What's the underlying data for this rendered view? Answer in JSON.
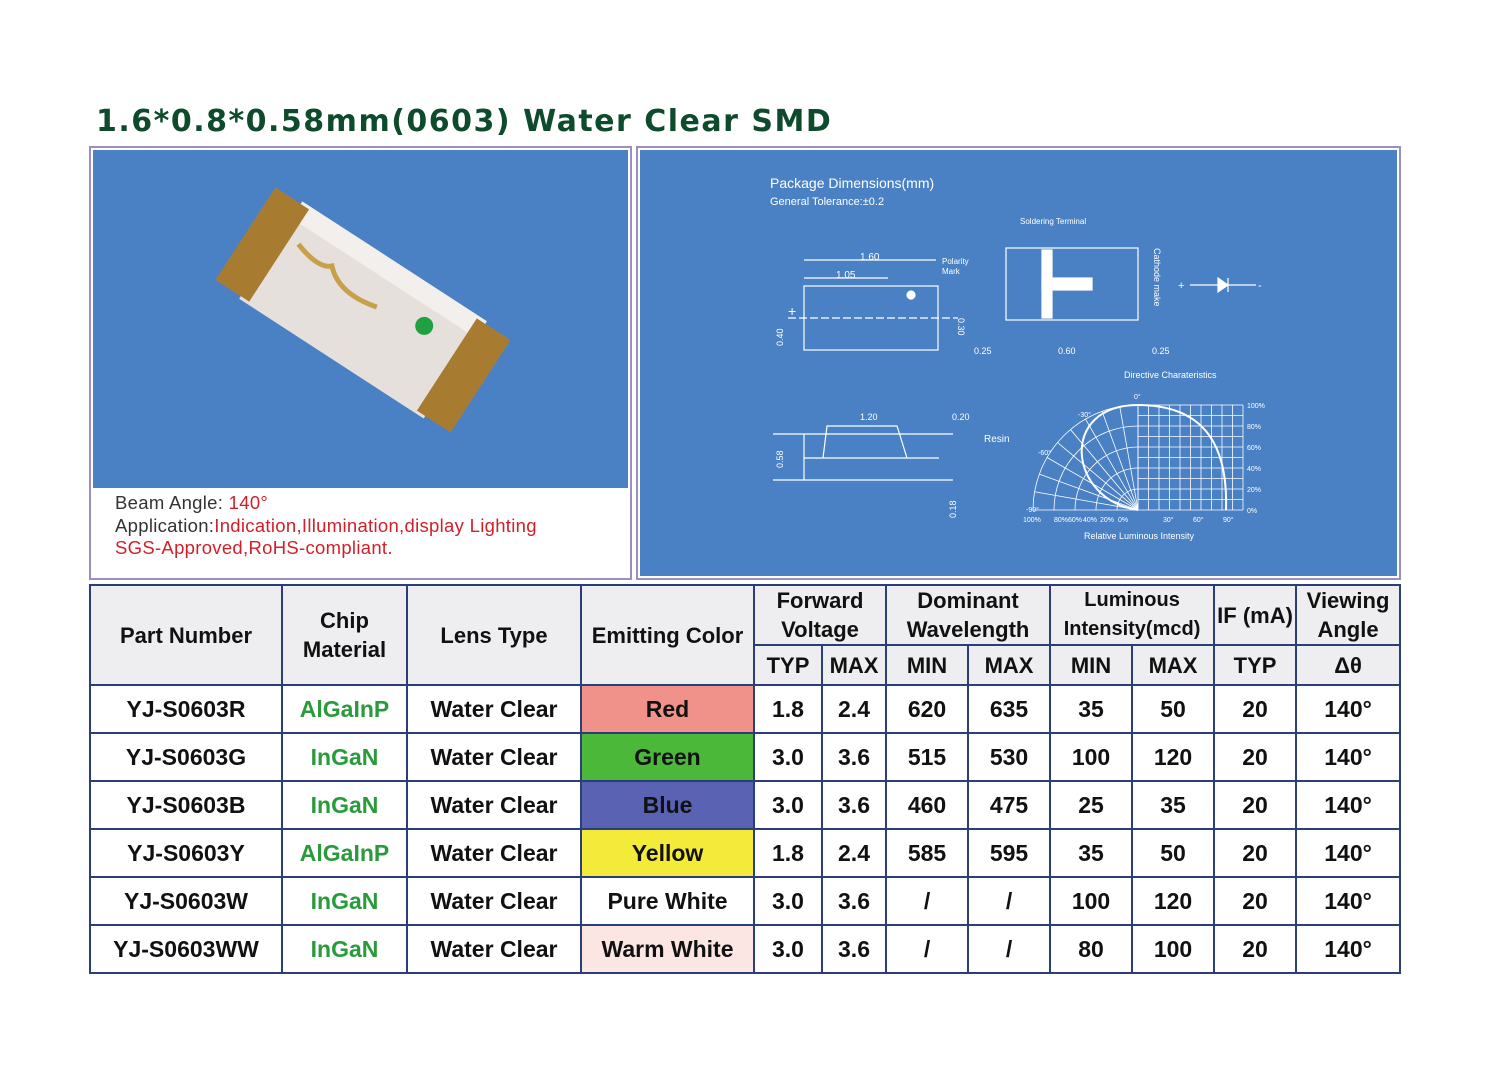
{
  "title": "1.6*0.8*0.58mm(0603)  Water Clear SMD",
  "caption": {
    "beam_label": "Beam Angle: ",
    "beam_value": "140°",
    "app_label": "Application:",
    "app_value": "Indication,Illumination,display Lighting",
    "cert": "SGS-Approved,RoHS-compliant."
  },
  "diagram": {
    "heading": "Package Dimensions(mm)",
    "tolerance": "General Tolerance:±0.2",
    "soldering": "Soldering Terminal",
    "d160": "1.60",
    "d105": "1.05",
    "polarity1": "Polarity",
    "polarity2": "Mark",
    "d040": "0.40",
    "d030": "0.30",
    "d025a": "0.25",
    "d060": "0.60",
    "d025b": "0.25",
    "cathode": "Cathode make",
    "plus": "+",
    "minus": "-",
    "directive": "Directive Charateristics",
    "d120": "1.20",
    "d020": "0.20",
    "resin": "Resin",
    "d058": "0.58",
    "d018": "0.18",
    "rel": "Relative Luminous Intensity",
    "polar_angles": [
      "0°",
      "-30°",
      "-60°",
      "-90°"
    ],
    "right_pct": [
      "100%",
      "80%",
      "60%",
      "40%",
      "20%",
      "0%"
    ],
    "bottom_ticks": [
      "100%",
      "80%",
      "60%",
      "40%",
      "20%",
      "0%",
      "30°",
      "60°",
      "90°"
    ]
  },
  "table": {
    "headers": {
      "part": "Part Number",
      "chip": "Chip Material",
      "lens": "Lens Type",
      "color": "Emitting Color",
      "fv": "Forward Voltage",
      "dw": "Dominant Wavelength",
      "li": "Luminous Intensity(mcd)",
      "if": "IF (mA)",
      "va": "Viewing Angle"
    },
    "subheaders": [
      "TYP",
      "MAX",
      "MIN",
      "MAX",
      "MIN",
      "MAX",
      "TYP",
      "Δθ"
    ],
    "rows": [
      {
        "part": "YJ-S0603R",
        "chip": "AlGaInP",
        "lens": "Water Clear",
        "color": "Red",
        "bg": "#f0918a",
        "vt": "1.8",
        "vm": "2.4",
        "wmin": "620",
        "wmax": "635",
        "imin": "35",
        "imax": "50",
        "if": "20",
        "va": "140°"
      },
      {
        "part": "YJ-S0603G",
        "chip": "InGaN",
        "lens": "Water Clear",
        "color": "Green",
        "bg": "#4cb83a",
        "vt": "3.0",
        "vm": "3.6",
        "wmin": "515",
        "wmax": "530",
        "imin": "100",
        "imax": "120",
        "if": "20",
        "va": "140°"
      },
      {
        "part": "YJ-S0603B",
        "chip": "InGaN",
        "lens": "Water Clear",
        "color": "Blue",
        "bg": "#5a62b4",
        "vt": "3.0",
        "vm": "3.6",
        "wmin": "460",
        "wmax": "475",
        "imin": "25",
        "imax": "35",
        "if": "20",
        "va": "140°"
      },
      {
        "part": "YJ-S0603Y",
        "chip": "AlGaInP",
        "lens": "Water Clear",
        "color": "Yellow",
        "bg": "#f4ea3a",
        "vt": "1.8",
        "vm": "2.4",
        "wmin": "585",
        "wmax": "595",
        "imin": "35",
        "imax": "50",
        "if": "20",
        "va": "140°"
      },
      {
        "part": "YJ-S0603W",
        "chip": "InGaN",
        "lens": "Water Clear",
        "color": "Pure White",
        "bg": "#ffffff",
        "vt": "3.0",
        "vm": "3.6",
        "wmin": "/",
        "wmax": "/",
        "imin": "100",
        "imax": "120",
        "if": "20",
        "va": "140°"
      },
      {
        "part": "YJ-S0603WW",
        "chip": "InGaN",
        "lens": "Water Clear",
        "color": "Warm White",
        "bg": "#fbe6e4",
        "vt": "3.0",
        "vm": "3.6",
        "wmin": "/",
        "wmax": "/",
        "imin": "80",
        "imax": "100",
        "if": "20",
        "va": "140°"
      }
    ]
  }
}
